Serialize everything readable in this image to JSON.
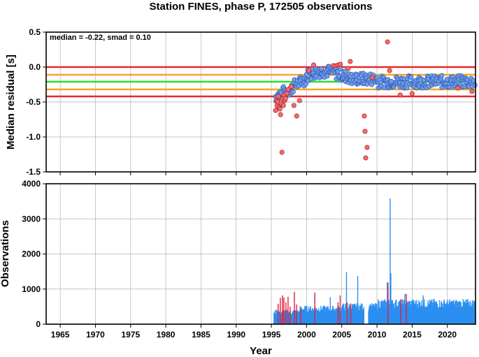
{
  "chart_data": [
    {
      "type": "scatter",
      "title": "Station FINES, phase P, 172505 observations",
      "ylabel": "Median residual [s]",
      "xlim": [
        1963,
        2024
      ],
      "ylim": [
        -1.5,
        0.5
      ],
      "yticks": [
        "0.5",
        "0.0",
        "-0.5",
        "-1.0",
        "-1.5"
      ],
      "ytick_values": [
        0.5,
        0.0,
        -0.5,
        -1.0,
        -1.5
      ],
      "grid": true,
      "annotation": "median = -0.22, smad = 0.10",
      "median": -0.22,
      "smad": 0.1,
      "reference_lines": [
        {
          "y": 0.0,
          "color": "#e8282a"
        },
        {
          "y": -0.42,
          "color": "#e8282a"
        },
        {
          "y": -0.11,
          "color": "#f5a623"
        },
        {
          "y": -0.32,
          "color": "#f5a623"
        },
        {
          "y": -0.21,
          "color": "#22e622"
        }
      ],
      "outlier_points": [
        [
          1995.6,
          -0.62
        ],
        [
          1995.7,
          -0.48
        ],
        [
          1995.8,
          -0.55
        ],
        [
          1995.9,
          -0.5
        ],
        [
          1996.0,
          -0.42
        ],
        [
          1996.1,
          -0.58
        ],
        [
          1996.2,
          -0.6
        ],
        [
          1996.3,
          -0.68
        ],
        [
          1996.4,
          -0.52
        ],
        [
          1996.5,
          -1.22
        ],
        [
          1996.6,
          -0.45
        ],
        [
          1996.7,
          -0.55
        ],
        [
          1996.8,
          -0.4
        ],
        [
          1996.9,
          -0.48
        ],
        [
          1997.0,
          -0.45
        ],
        [
          1997.2,
          -0.38
        ],
        [
          1997.4,
          -0.32
        ],
        [
          1997.8,
          -0.28
        ],
        [
          1998.2,
          -0.55
        ],
        [
          1998.6,
          -0.7
        ],
        [
          1999.0,
          -0.48
        ],
        [
          2000.3,
          -0.05
        ],
        [
          2001.0,
          0.03
        ],
        [
          2003.8,
          0.02
        ],
        [
          2004.2,
          0.02
        ],
        [
          2004.5,
          0.03
        ],
        [
          2004.8,
          0.04
        ],
        [
          2005.9,
          -0.02
        ],
        [
          2006.2,
          0.08
        ],
        [
          2008.2,
          -0.7
        ],
        [
          2008.3,
          -0.92
        ],
        [
          2008.4,
          -1.3
        ],
        [
          2008.6,
          -1.15
        ],
        [
          2009.3,
          -0.15
        ],
        [
          2011.5,
          0.36
        ],
        [
          2011.8,
          -0.05
        ],
        [
          2013.3,
          -0.4
        ],
        [
          2015.0,
          -0.38
        ],
        [
          2021.5,
          -0.3
        ],
        [
          2023.5,
          -0.35
        ]
      ],
      "outlier_color": "#f26b6b",
      "point_color": "#6f9eef"
    },
    {
      "type": "bar",
      "xlabel": "Year",
      "ylabel": "Observations",
      "xlim": [
        1963,
        2024
      ],
      "ylim": [
        0,
        4000
      ],
      "yticks": [
        "4000",
        "3000",
        "2000",
        "1000",
        "0"
      ],
      "ytick_values": [
        4000,
        3000,
        2000,
        1000,
        0
      ],
      "xticks": [
        "1965",
        "1970",
        "1975",
        "1980",
        "1985",
        "1990",
        "1995",
        "2000",
        "2005",
        "2010",
        "2015",
        "2020"
      ],
      "xtick_values": [
        1965,
        1970,
        1975,
        1980,
        1985,
        1990,
        1995,
        2000,
        2005,
        2010,
        2015,
        2020
      ],
      "grid": true,
      "bar_color": "#2b8ff0",
      "outlier_bar_color": "#e0203a",
      "spikes": [
        [
          2005.6,
          1480
        ],
        [
          2007.2,
          1370
        ],
        [
          2011.8,
          3580
        ],
        [
          2011.9,
          1450
        ],
        [
          2003.3,
          770
        ],
        [
          2001.1,
          900
        ],
        [
          2011.4,
          1200
        ],
        [
          2013.9,
          860
        ],
        [
          2016.5,
          820
        ]
      ],
      "outlier_bars": [
        [
          1995.9,
          580
        ],
        [
          1996.2,
          750
        ],
        [
          1996.5,
          820
        ],
        [
          1996.7,
          760
        ],
        [
          1997.0,
          620
        ],
        [
          1997.3,
          780
        ],
        [
          1997.6,
          500
        ],
        [
          1998.2,
          920
        ],
        [
          1998.5,
          560
        ],
        [
          1999.1,
          420
        ],
        [
          2001.1,
          880
        ],
        [
          2004.4,
          620
        ],
        [
          2004.7,
          820
        ],
        [
          2005.7,
          620
        ],
        [
          2006.2,
          590
        ],
        [
          2011.5,
          1180
        ],
        [
          2013.3,
          700
        ],
        [
          2014.1,
          860
        ]
      ]
    }
  ]
}
